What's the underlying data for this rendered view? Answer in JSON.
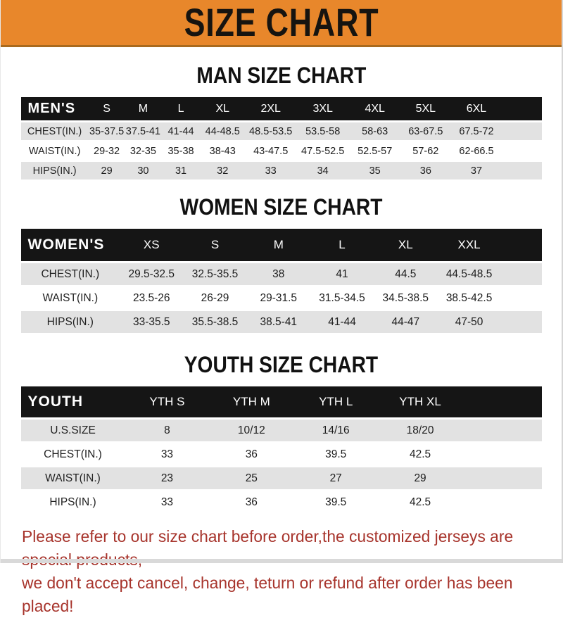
{
  "banner": {
    "title": "SIZE CHART"
  },
  "colors": {
    "banner_bg": "#E8872B",
    "banner_edge": "#A96A1E",
    "table_header_bg": "#151515",
    "row_alt_bg": "#E2E2E2",
    "heading_color": "#111111",
    "note_color": "#A7342C"
  },
  "sections": [
    {
      "heading": "MAN SIZE CHART",
      "table": {
        "header": [
          "MEN'S",
          "S",
          "M",
          "L",
          "XL",
          "2XL",
          "3XL",
          "4XL",
          "5XL",
          "6XL"
        ],
        "rows": [
          [
            "CHEST(IN.)",
            "35-37.5",
            "37.5-41",
            "41-44",
            "44-48.5",
            "48.5-53.5",
            "53.5-58",
            "58-63",
            "63-67.5",
            "67.5-72"
          ],
          [
            "WAIST(IN.)",
            "29-32",
            "32-35",
            "35-38",
            "38-43",
            "43-47.5",
            "47.5-52.5",
            "52.5-57",
            "57-62",
            "62-66.5"
          ],
          [
            "HIPS(IN.)",
            "29",
            "30",
            "31",
            "32",
            "33",
            "34",
            "35",
            "36",
            "37"
          ]
        ]
      }
    },
    {
      "heading": "WOMEN SIZE CHART",
      "table": {
        "header": [
          "WOMEN'S",
          "XS",
          "S",
          "M",
          "L",
          "XL",
          "XXL"
        ],
        "rows": [
          [
            "CHEST(IN.)",
            "29.5-32.5",
            "32.5-35.5",
            "38",
            "41",
            "44.5",
            "44.5-48.5"
          ],
          [
            "WAIST(IN.)",
            "23.5-26",
            "26-29",
            "29-31.5",
            "31.5-34.5",
            "34.5-38.5",
            "38.5-42.5"
          ],
          [
            "HIPS(IN.)",
            "33-35.5",
            "35.5-38.5",
            "38.5-41",
            "41-44",
            "44-47",
            "47-50"
          ]
        ]
      }
    },
    {
      "heading": "YOUTH SIZE CHART",
      "table": {
        "header": [
          "YOUTH",
          "YTH S",
          "YTH M",
          "YTH L",
          "YTH XL"
        ],
        "rows": [
          [
            "U.S.SIZE",
            "8",
            "10/12",
            "14/16",
            "18/20"
          ],
          [
            "CHEST(IN.)",
            "33",
            "36",
            "39.5",
            "42.5"
          ],
          [
            "WAIST(IN.)",
            "23",
            "25",
            "27",
            "29"
          ],
          [
            "HIPS(IN.)",
            "33",
            "36",
            "39.5",
            "42.5"
          ]
        ]
      }
    }
  ],
  "note": {
    "line1": "Please refer to our size chart before order,the customized jerseys are special products,",
    "line2": "we don't accept cancel, change, teturn or refund after order has been placed!"
  }
}
